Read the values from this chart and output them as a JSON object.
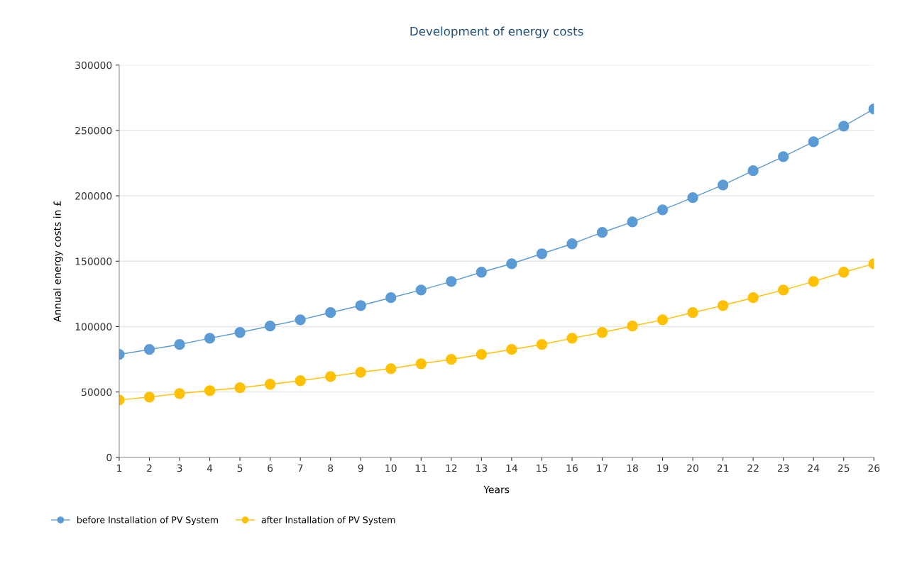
{
  "chart_data": {
    "type": "line",
    "title": "Development of energy costs",
    "xlabel": "Years",
    "ylabel": "Annual energy costs in £",
    "x": [
      1,
      2,
      3,
      4,
      5,
      6,
      7,
      8,
      9,
      10,
      11,
      12,
      13,
      14,
      15,
      16,
      17,
      18,
      19,
      20,
      21,
      22,
      23,
      24,
      25,
      26
    ],
    "series": [
      {
        "name": "before Installation of PV System",
        "color": "#5b9bd5",
        "values": [
          78700,
          82500,
          86300,
          91100,
          95500,
          100400,
          105200,
          110700,
          116100,
          122100,
          128000,
          134500,
          141600,
          148100,
          155700,
          163300,
          172000,
          180100,
          189300,
          198600,
          208300,
          219200,
          230000,
          241400,
          253300,
          266400
        ]
      },
      {
        "name": "after Installation of PV System",
        "color": "#ffc000",
        "values": [
          43900,
          46100,
          48800,
          51000,
          53200,
          55900,
          58600,
          61800,
          65100,
          67800,
          71600,
          74900,
          78700,
          82500,
          86300,
          91100,
          95500,
          100400,
          105200,
          110700,
          116100,
          122100,
          128000,
          134500,
          141600,
          148100
        ]
      }
    ],
    "xlim": [
      1,
      26
    ],
    "xticks": [
      1,
      2,
      3,
      4,
      5,
      6,
      7,
      8,
      9,
      10,
      11,
      12,
      13,
      14,
      15,
      16,
      17,
      18,
      19,
      20,
      21,
      22,
      23,
      24,
      25,
      26
    ],
    "ylim": [
      0,
      300000
    ],
    "yticks": [
      0,
      50000,
      100000,
      150000,
      200000,
      250000,
      300000
    ],
    "grid": "y",
    "legend": "bottom left",
    "marker": "circle",
    "line_style": "solid"
  }
}
